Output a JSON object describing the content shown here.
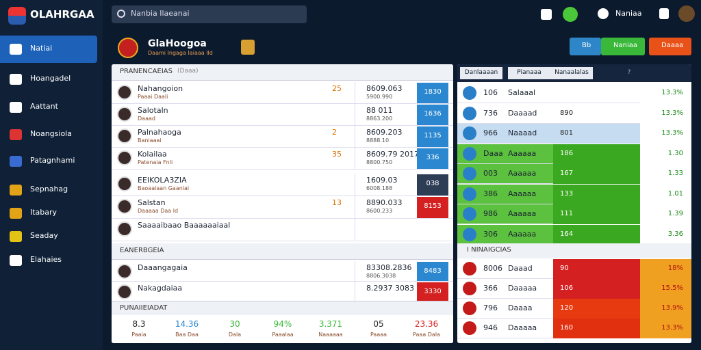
{
  "sidebar": {
    "logo": "OLAHRGAA",
    "items": [
      "Natiai",
      "Hoangadel",
      "Aattant",
      "Noangsiola",
      "Patagnhami",
      "Sepnahag",
      "Itabary",
      "Seaday",
      "Elahaies"
    ]
  },
  "topbar": {
    "search": "Nanbia Ilaeanai",
    "user": "Naniaa"
  },
  "header": {
    "title": "GlaHoogoa",
    "subtitle": "Daami Ingaga Iaiaaa Ild",
    "buttons": [
      "Bb",
      "Naniaa",
      "Daaaa"
    ]
  },
  "left": {
    "sections": [
      {
        "title": "PRANENCAEIAS",
        "note": "(Daaa)",
        "rows": [
          {
            "name": "Nahangoion",
            "sub": "Paaai Daali",
            "score": "25",
            "line1": "8609.063",
            "line2": "5900.990",
            "box": "1830"
          },
          {
            "name": "Salotaln",
            "sub": "Daaad",
            "score": "",
            "line1": "88 011",
            "line2": "8863.200",
            "box": "1636"
          },
          {
            "name": "Palnahaoga",
            "sub": "Baniaaai",
            "score": "2",
            "line1": "8609.203",
            "line2": "8888.10",
            "box": "1135"
          },
          {
            "name": "Kolailaa",
            "sub": "Patenaia Fnli",
            "score": "35",
            "line1": "8609.79 2017",
            "line2": "8800.750",
            "box": "336"
          }
        ]
      },
      {
        "rows": [
          {
            "name": "EEIKOLA3ZIA",
            "sub": "Baoaalaan Gaanlai",
            "score": "",
            "line1": "1609.03",
            "line2": "6008.188",
            "box": "038"
          },
          {
            "name": "Salstan",
            "sub": "Daaaaa Daa ld",
            "score": "13",
            "line1": "8890.033",
            "line2": "8600.233",
            "box": "8153"
          },
          {
            "name": "Saaaaibaao Baaaaaaiaal",
            "sub": "",
            "score": "",
            "line1": "",
            "line2": "",
            "box": ""
          }
        ]
      },
      {
        "title": "EANERBGEIA",
        "rows": [
          {
            "name": "Daaangagaia",
            "sub": "",
            "score": "",
            "line1": "83308.2836",
            "line2": "8806.3038",
            "box": "8483"
          },
          {
            "name": "Nakagdaiaa",
            "sub": "",
            "score": "",
            "line1": "8.2937 3083",
            "line2": "",
            "box": "3330"
          }
        ]
      }
    ],
    "footer": {
      "title": "PUNAIIEIADAT",
      "stats": [
        {
          "value": "8.3",
          "label": "Paaia"
        },
        {
          "value": "14.36",
          "label": "Baa Daa"
        },
        {
          "value": "30",
          "label": "Dala"
        },
        {
          "value": "94%",
          "label": "Paaalaa"
        },
        {
          "value": "3.371",
          "label": "Naaaaaa"
        },
        {
          "value": "05",
          "label": "Paaaa"
        },
        {
          "value": "23.36",
          "label": "Paaa Dala"
        }
      ]
    }
  },
  "right": {
    "tabs": [
      "Danlaaaan",
      "Pianaaa",
      "Nanaalalas",
      "?"
    ],
    "rows": [
      {
        "code": "106",
        "name": "Salaaal",
        "val": "",
        "pct": "13.3%"
      },
      {
        "code": "736",
        "name": "Daaaad",
        "val": "890",
        "pct": "13.3%"
      },
      {
        "code": "966",
        "name": "Naaaad",
        "val": "801",
        "pct": "13.3%"
      },
      {
        "code": "Daaa",
        "name": "Aaaaaa",
        "val": "186",
        "pct": "1.30"
      },
      {
        "code": "003",
        "name": "Aaaaaa",
        "val": "167",
        "pct": "1.33"
      },
      {
        "code": "386",
        "name": "Aaaaaa",
        "val": "133",
        "pct": "1.01"
      },
      {
        "code": "986",
        "name": "Aaaaaa",
        "val": "111",
        "pct": "1.39"
      },
      {
        "code": "306",
        "name": "Aaaaaa",
        "val": "164",
        "pct": "3.36"
      }
    ],
    "section": {
      "title": "I NINAIGCIAS",
      "rows": [
        {
          "code": "8006",
          "name": "Daaad",
          "val": "90",
          "pct": "18%"
        },
        {
          "code": "366",
          "name": "Daaaaa",
          "val": "106",
          "pct": "15.5%"
        },
        {
          "code": "796",
          "name": "Daaaa",
          "val": "120",
          "pct": "13.9%"
        },
        {
          "code": "946",
          "name": "Daaaaa",
          "val": "160",
          "pct": "13.3%"
        }
      ]
    }
  }
}
